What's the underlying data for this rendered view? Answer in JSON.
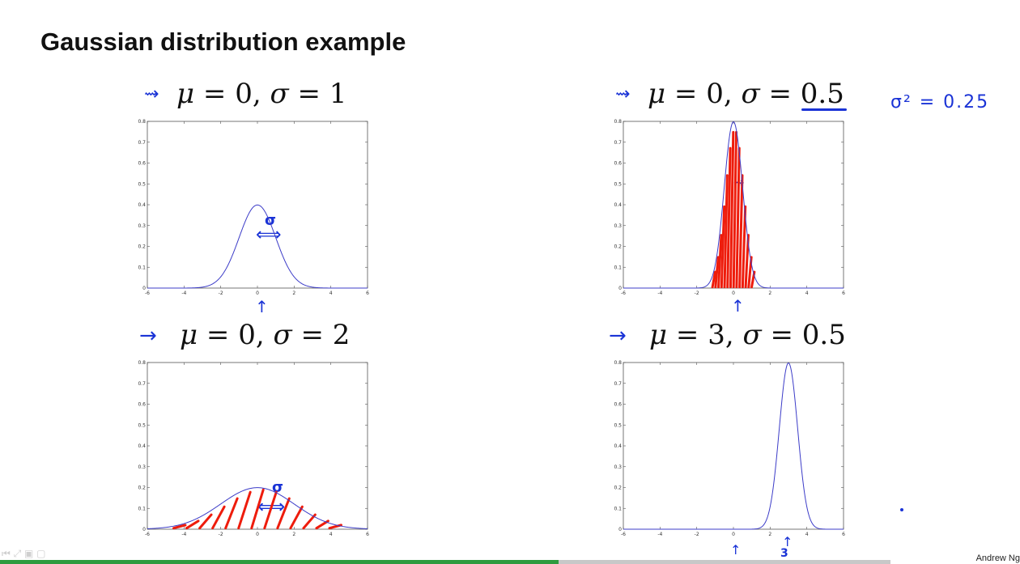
{
  "slide": {
    "title": "Gaussian distribution example",
    "author": "Andrew Ng"
  },
  "panels": [
    {
      "id": "p1",
      "caption": {
        "mu_sym": "μ",
        "eq1": " = 0, ",
        "sigma_sym": "σ",
        "eq2": " = 1"
      }
    },
    {
      "id": "p2",
      "caption": {
        "mu_sym": "μ",
        "eq1": " = 0, ",
        "sigma_sym": "σ",
        "eq2": " = 0.5"
      }
    },
    {
      "id": "p3",
      "caption": {
        "mu_sym": "μ",
        "eq1": " = 0, ",
        "sigma_sym": "σ",
        "eq2": " = 2"
      }
    },
    {
      "id": "p4",
      "caption": {
        "mu_sym": "μ",
        "eq1": " = 3, ",
        "sigma_sym": "σ",
        "eq2": " = 0.5"
      }
    }
  ],
  "annotations": {
    "variance_note": "σ² = 0.25",
    "sigma_mark": "σ",
    "three_mark": "3",
    "arrow": "→",
    "arrow_head": "⇝",
    "up_arrow": "↑",
    "double_arrow": "⟺"
  },
  "chart_data": [
    {
      "type": "line",
      "title": "μ = 0, σ = 1",
      "mu": 0,
      "sigma": 1,
      "xlim": [
        -6,
        6
      ],
      "ylim": [
        0,
        0.8
      ],
      "xticks": [
        "-6",
        "-4",
        "-2",
        "0",
        "2",
        "4",
        "6"
      ],
      "yticks": [
        "0",
        "0.1",
        "0.2",
        "0.3",
        "0.4",
        "0.5",
        "0.6",
        "0.7",
        "0.8"
      ],
      "shaded": false
    },
    {
      "type": "line",
      "title": "μ = 0, σ = 0.5",
      "mu": 0,
      "sigma": 0.5,
      "xlim": [
        -6,
        6
      ],
      "ylim": [
        0,
        0.8
      ],
      "xticks": [
        "-6",
        "-4",
        "-2",
        "0",
        "2",
        "4",
        "6"
      ],
      "yticks": [
        "0",
        "0.1",
        "0.2",
        "0.3",
        "0.4",
        "0.5",
        "0.6",
        "0.7",
        "0.8"
      ],
      "shaded": true
    },
    {
      "type": "line",
      "title": "μ = 0, σ = 2",
      "mu": 0,
      "sigma": 2,
      "xlim": [
        -6,
        6
      ],
      "ylim": [
        0,
        0.8
      ],
      "xticks": [
        "-6",
        "-4",
        "-2",
        "0",
        "2",
        "4",
        "6"
      ],
      "yticks": [
        "0",
        "0.1",
        "0.2",
        "0.3",
        "0.4",
        "0.5",
        "0.6",
        "0.7",
        "0.8"
      ],
      "shaded": true
    },
    {
      "type": "line",
      "title": "μ = 3, σ = 0.5",
      "mu": 3,
      "sigma": 0.5,
      "xlim": [
        -6,
        6
      ],
      "ylim": [
        0,
        0.8
      ],
      "xticks": [
        "-6",
        "-4",
        "-2",
        "0",
        "2",
        "4",
        "6"
      ],
      "yticks": [
        "0",
        "0.1",
        "0.2",
        "0.3",
        "0.4",
        "0.5",
        "0.6",
        "0.7",
        "0.8"
      ],
      "shaded": false
    }
  ],
  "player": {
    "progress_percent": 62.7,
    "controls_icon": "⏮ ⤢ ▣ ▢"
  },
  "colors": {
    "curve": "#3c3cc8",
    "ink_blue": "#1a33d6",
    "ink_red": "#ee1c0c",
    "progress": "#2e9b3f"
  }
}
